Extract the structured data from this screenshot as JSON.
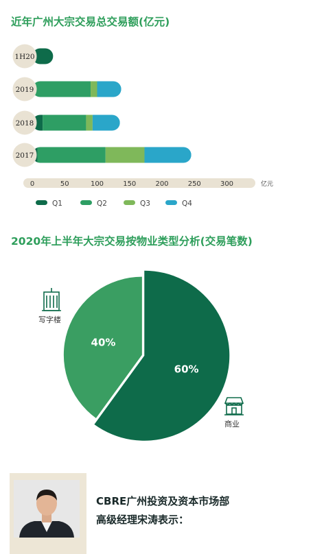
{
  "titles": {
    "bar_title": "近年广州大宗交易总交易额(亿元)",
    "pie_title": "2020年上半年大宗交易按物业类型分析(交易笔数)"
  },
  "colors": {
    "title_green": "#2e9e5b",
    "q1": "#0e6b4a",
    "q2": "#2e9e64",
    "q3": "#7fb85a",
    "q4": "#2aa6c9",
    "pie_dark": "#0e6b4a",
    "pie_light": "#3a9e62",
    "track": "#e9e2d3"
  },
  "chart_data": [
    {
      "type": "bar",
      "orientation": "horizontal",
      "stacked": true,
      "title": "近年广州大宗交易总交易额(亿元)",
      "categories": [
        "1H20",
        "2019",
        "2018",
        "2017"
      ],
      "series": [
        {
          "name": "Q1",
          "values": [
            20,
            0,
            16,
            8
          ]
        },
        {
          "name": "Q2",
          "values": [
            0,
            90,
            67,
            105
          ]
        },
        {
          "name": "Q3",
          "values": [
            0,
            10,
            10,
            60
          ]
        },
        {
          "name": "Q4",
          "values": [
            0,
            25,
            30,
            60
          ]
        }
      ],
      "x_ticks": [
        0,
        50,
        100,
        150,
        200,
        250,
        300
      ],
      "xlim": [
        0,
        340
      ],
      "unit": "亿元",
      "legend_position": "bottom"
    },
    {
      "type": "pie",
      "title": "2020年上半年大宗交易按物业类型分析(交易笔数)",
      "slices": [
        {
          "label": "商业",
          "value": 60,
          "display": "60%"
        },
        {
          "label": "写字楼",
          "value": 40,
          "display": "40%"
        }
      ]
    }
  ],
  "quote": {
    "line1": "CBRE广州投资及资本市场部",
    "line2": "高级经理宋涛表示："
  }
}
